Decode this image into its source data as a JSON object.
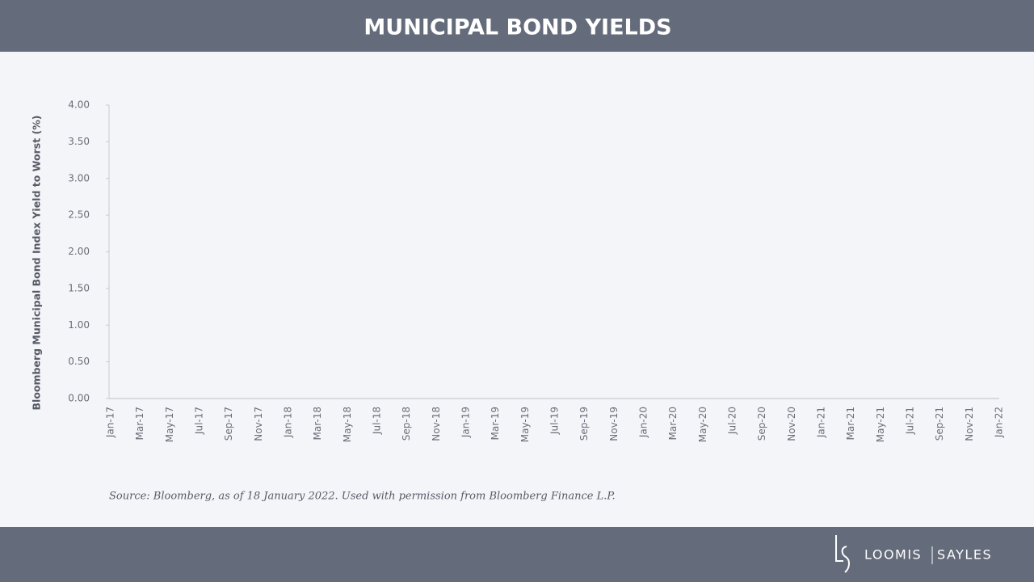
{
  "chart_data": {
    "type": "line",
    "title": "MUNICIPAL BOND YIELDS",
    "y_label": "Bloomberg Municipal Bond Index Yield to Worst (%)",
    "categories": [
      "Jan-17",
      "Mar-17",
      "May-17",
      "Jul-17",
      "Sep-17",
      "Nov-17",
      "Jan-18",
      "Mar-18",
      "May-18",
      "Jul-18",
      "Sep-18",
      "Nov-18",
      "Jan-19",
      "Mar-19",
      "May-19",
      "Jul-19",
      "Sep-19",
      "Nov-19",
      "Jan-20",
      "Mar-20",
      "May-20",
      "Jul-20",
      "Sep-20",
      "Nov-20",
      "Jan-21",
      "Mar-21",
      "May-21",
      "Jul-21",
      "Sep-21",
      "Nov-21",
      "Jan-22"
    ],
    "ylim": [
      0,
      4
    ],
    "yticks": [
      {
        "value": 0,
        "label": "0.00"
      },
      {
        "value": 0.5,
        "label": "0.50"
      },
      {
        "value": 1,
        "label": "1.00"
      },
      {
        "value": 1.5,
        "label": "1.50"
      },
      {
        "value": 2,
        "label": "2.00"
      },
      {
        "value": 2.5,
        "label": "2.50"
      },
      {
        "value": 3,
        "label": "3.00"
      },
      {
        "value": 3.5,
        "label": "3.50"
      },
      {
        "value": 4,
        "label": "4.00"
      }
    ],
    "source": "Source: Bloomberg, as of 18 January 2022. Used with permission from Bloomberg Finance L.P."
  },
  "footer": {
    "brand_left": "LOOMIS",
    "brand_right": "SAYLES"
  }
}
